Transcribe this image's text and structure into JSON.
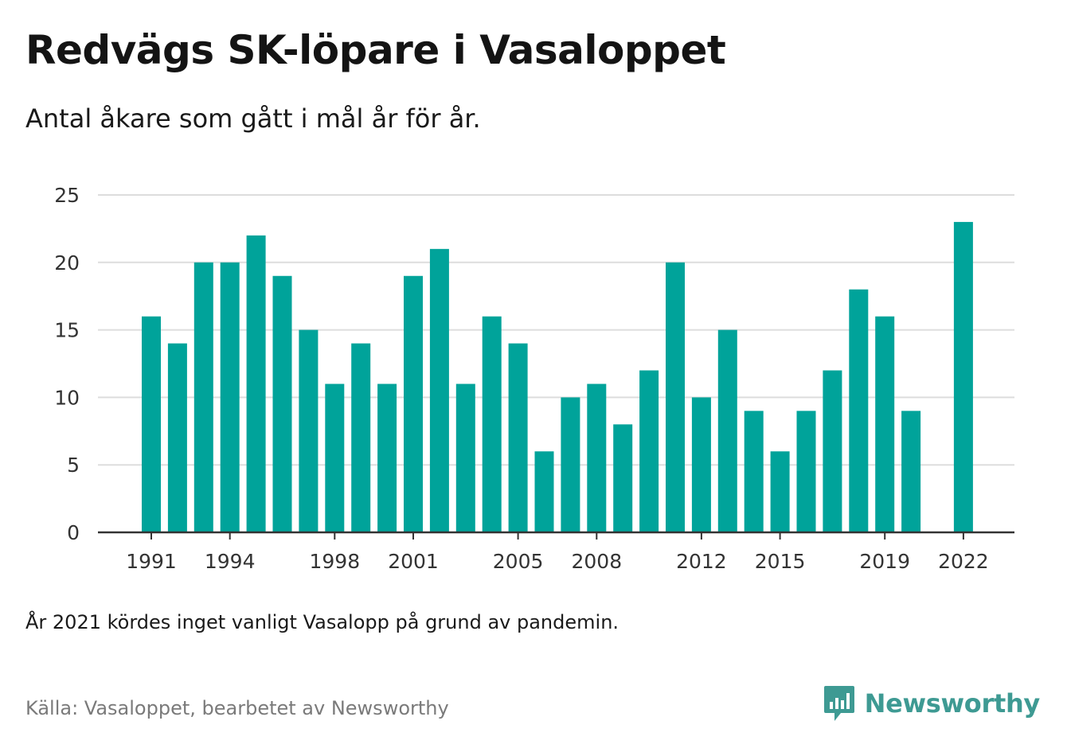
{
  "title": "Redvägs SK-löpare i Vasaloppet",
  "subtitle": "Antal åkare som gått i mål år för år.",
  "note": "År 2021 kördes inget vanligt Vasalopp på grund av pandemin.",
  "source": "Källa: Vasaloppet, bearbetet av Newsworthy",
  "brand": {
    "name": "Newsworthy",
    "icon": "newsworthy-logo-icon"
  },
  "colors": {
    "bar": "#00a39a",
    "grid": "#dddddd",
    "axis": "#333333",
    "brand": "#3e9a93"
  },
  "chart_data": {
    "type": "bar",
    "x": [
      1991,
      1992,
      1993,
      1994,
      1995,
      1996,
      1997,
      1998,
      1999,
      2000,
      2001,
      2002,
      2003,
      2004,
      2005,
      2006,
      2007,
      2008,
      2009,
      2010,
      2011,
      2012,
      2013,
      2014,
      2015,
      2016,
      2017,
      2018,
      2019,
      2020,
      2021,
      2022
    ],
    "values": [
      16,
      14,
      20,
      20,
      22,
      19,
      15,
      11,
      14,
      11,
      19,
      21,
      11,
      16,
      14,
      6,
      10,
      11,
      8,
      12,
      20,
      10,
      15,
      9,
      6,
      9,
      12,
      18,
      16,
      9,
      null,
      23
    ],
    "ylim": [
      0,
      25
    ],
    "yticks": [
      0,
      5,
      10,
      15,
      20,
      25
    ],
    "xticks": [
      "1991",
      "1994",
      "1998",
      "2001",
      "2005",
      "2008",
      "2012",
      "2015",
      "2019",
      "2022"
    ],
    "grid": true,
    "legend": "none"
  }
}
